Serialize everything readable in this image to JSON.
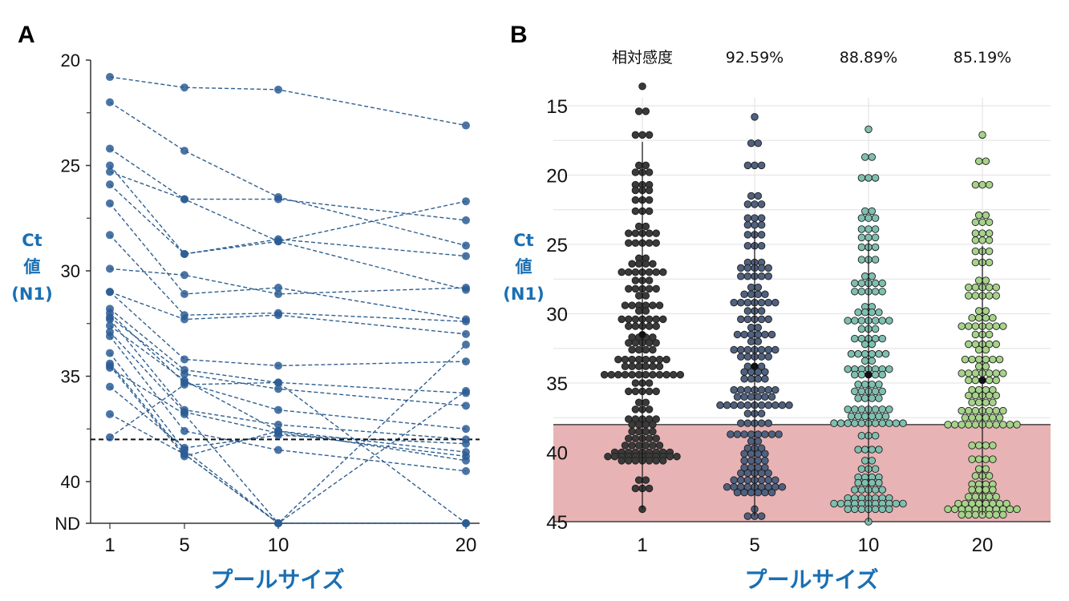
{
  "chart_data": [
    {
      "panel": "A",
      "type": "line",
      "panel_label": "A",
      "xlabel": "プールサイズ",
      "ylabel_lines": [
        "Ct",
        "値",
        "(N1)"
      ],
      "x_categories": [
        "1",
        "5",
        "10",
        "20"
      ],
      "y_ticks": [
        "20",
        "25",
        "30",
        "35",
        "40",
        "ND"
      ],
      "y_tick_values": [
        20,
        25,
        30,
        35,
        40,
        42
      ],
      "ylim": [
        20,
        42
      ],
      "y_inverted": true,
      "nd_value": 42,
      "threshold": 38,
      "line_color": "#2f5f8f",
      "marker_color": "#2b5d95",
      "series": [
        {
          "values": [
            20.8,
            21.3,
            21.4,
            23.1
          ]
        },
        {
          "values": [
            22.0,
            24.3,
            26.5,
            28.8
          ]
        },
        {
          "values": [
            24.2,
            26.6,
            26.6,
            27.6
          ]
        },
        {
          "values": [
            25.0,
            29.2,
            28.5,
            29.3
          ]
        },
        {
          "values": [
            25.3,
            26.6,
            28.6,
            30.9
          ]
        },
        {
          "values": [
            25.9,
            29.2,
            28.6,
            26.7
          ]
        },
        {
          "values": [
            26.8,
            31.1,
            30.8,
            32.3
          ]
        },
        {
          "values": [
            28.3,
            32.1,
            32.0,
            32.4
          ]
        },
        {
          "values": [
            29.9,
            30.2,
            31.1,
            30.8
          ]
        },
        {
          "values": [
            31.0,
            32.3,
            32.1,
            33.0
          ]
        },
        {
          "values": [
            31.0,
            34.2,
            34.5,
            34.3
          ]
        },
        {
          "values": [
            31.8,
            34.7,
            35.3,
            35.8
          ]
        },
        {
          "values": [
            32.0,
            35.3,
            36.6,
            37.5
          ]
        },
        {
          "values": [
            32.2,
            34.9,
            35.6,
            36.4
          ]
        },
        {
          "values": [
            32.3,
            36.6,
            37.3,
            38.0
          ]
        },
        {
          "values": [
            32.6,
            35.2,
            37.6,
            38.6
          ]
        },
        {
          "values": [
            32.9,
            36.7,
            37.7,
            38.8
          ]
        },
        {
          "values": [
            33.1,
            37.6,
            38.5,
            39.5
          ]
        },
        {
          "values": [
            33.9,
            38.5,
            42,
            33.5
          ]
        },
        {
          "values": [
            34.4,
            38.7,
            42,
            35.7
          ]
        },
        {
          "values": [
            34.5,
            38.8,
            37.6,
            39.0
          ]
        },
        {
          "values": [
            34.6,
            36.8,
            42,
            42
          ]
        },
        {
          "values": [
            35.5,
            38.4,
            37.8,
            38.2
          ]
        },
        {
          "values": [
            36.8,
            38.7,
            42,
            42
          ]
        },
        {
          "values": [
            37.9,
            35.4,
            35.3,
            42
          ]
        }
      ]
    },
    {
      "panel": "B",
      "type": "scatter",
      "subtype": "beeswarm",
      "panel_label": "B",
      "xlabel": "プールサイズ",
      "ylabel_lines": [
        "Ct",
        "値",
        "(N1)"
      ],
      "x_categories": [
        "1",
        "5",
        "10",
        "20"
      ],
      "y_ticks": [
        "15",
        "20",
        "25",
        "30",
        "35",
        "40",
        "45"
      ],
      "y_tick_values": [
        15,
        20,
        25,
        30,
        35,
        40,
        45
      ],
      "ylim": [
        13,
        45
      ],
      "y_inverted": true,
      "grid": true,
      "threshold": 38,
      "shaded_region": [
        38,
        45
      ],
      "shaded_color": "#e8b3b5",
      "header_label": "相対感度",
      "relative_sensitivity": [
        "",
        "92.59%",
        "88.89%",
        "85.19%"
      ],
      "medians": [
        31.5,
        33.8,
        34.4,
        34.8
      ],
      "group_colors": [
        "#3a3a3a",
        "#50617f",
        "#7fbfb0",
        "#a6d38a"
      ],
      "groups": [
        {
          "rows": [
            [
              13.6,
              1
            ],
            [
              15.4,
              2
            ],
            [
              17.1,
              3
            ],
            [
              19.3,
              2
            ],
            [
              19.8,
              3
            ],
            [
              20.7,
              3
            ],
            [
              21.1,
              3
            ],
            [
              21.8,
              3
            ],
            [
              22.6,
              3
            ],
            [
              23.7,
              2
            ],
            [
              24.2,
              5
            ],
            [
              24.9,
              5
            ],
            [
              26.0,
              2
            ],
            [
              26.4,
              4
            ],
            [
              27.0,
              7
            ],
            [
              27.6,
              3
            ],
            [
              28.2,
              5
            ],
            [
              28.7,
              2
            ],
            [
              29.4,
              6
            ],
            [
              29.8,
              2
            ],
            [
              30.4,
              7
            ],
            [
              30.9,
              5
            ],
            [
              31.7,
              4
            ],
            [
              32.1,
              5
            ],
            [
              32.6,
              4
            ],
            [
              33.3,
              8
            ],
            [
              33.8,
              6
            ],
            [
              34.4,
              12
            ],
            [
              35.0,
              3
            ],
            [
              35.6,
              5
            ],
            [
              36.4,
              2
            ],
            [
              36.9,
              3
            ],
            [
              37.6,
              5
            ],
            [
              38.0,
              4
            ],
            [
              38.5,
              4
            ],
            [
              39.0,
              5
            ],
            [
              39.5,
              6
            ],
            [
              40.0,
              9
            ],
            [
              40.3,
              11
            ],
            [
              40.6,
              7
            ],
            [
              42.0,
              2
            ],
            [
              42.6,
              3
            ],
            [
              44.1,
              1
            ]
          ]
        },
        {
          "rows": [
            [
              15.8,
              1
            ],
            [
              17.7,
              2
            ],
            [
              19.3,
              3
            ],
            [
              21.5,
              2
            ],
            [
              22.1,
              3
            ],
            [
              23.1,
              3
            ],
            [
              23.6,
              3
            ],
            [
              24.3,
              3
            ],
            [
              25.1,
              3
            ],
            [
              26.3,
              3
            ],
            [
              26.7,
              5
            ],
            [
              27.3,
              5
            ],
            [
              28.1,
              2
            ],
            [
              28.6,
              4
            ],
            [
              29.2,
              7
            ],
            [
              29.8,
              3
            ],
            [
              30.4,
              5
            ],
            [
              31.0,
              2
            ],
            [
              31.5,
              6
            ],
            [
              32.0,
              2
            ],
            [
              32.6,
              7
            ],
            [
              33.1,
              5
            ],
            [
              33.8,
              3
            ],
            [
              34.2,
              4
            ],
            [
              34.7,
              4
            ],
            [
              35.5,
              7
            ],
            [
              36.0,
              6
            ],
            [
              36.6,
              11
            ],
            [
              37.2,
              3
            ],
            [
              37.9,
              5
            ],
            [
              38.7,
              8
            ],
            [
              39.2,
              2
            ],
            [
              39.7,
              3
            ],
            [
              40.1,
              4
            ],
            [
              40.6,
              4
            ],
            [
              41.1,
              4
            ],
            [
              41.5,
              5
            ],
            [
              42.0,
              7
            ],
            [
              42.5,
              9
            ],
            [
              42.9,
              6
            ],
            [
              44.1,
              1
            ],
            [
              44.6,
              3
            ]
          ]
        },
        {
          "rows": [
            [
              16.7,
              1
            ],
            [
              18.7,
              2
            ],
            [
              20.2,
              3
            ],
            [
              22.6,
              2
            ],
            [
              23.1,
              3
            ],
            [
              23.9,
              3
            ],
            [
              24.5,
              3
            ],
            [
              25.2,
              3
            ],
            [
              26.1,
              3
            ],
            [
              27.3,
              2
            ],
            [
              27.8,
              5
            ],
            [
              28.4,
              5
            ],
            [
              29.5,
              2
            ],
            [
              29.9,
              4
            ],
            [
              30.5,
              7
            ],
            [
              31.1,
              3
            ],
            [
              31.8,
              5
            ],
            [
              32.2,
              2
            ],
            [
              32.9,
              6
            ],
            [
              33.4,
              2
            ],
            [
              34.0,
              7
            ],
            [
              34.4,
              5
            ],
            [
              35.1,
              4
            ],
            [
              35.6,
              5
            ],
            [
              36.1,
              4
            ],
            [
              36.9,
              7
            ],
            [
              37.4,
              6
            ],
            [
              37.9,
              11
            ],
            [
              38.8,
              3
            ],
            [
              39.8,
              4
            ],
            [
              40.6,
              2
            ],
            [
              41.2,
              3
            ],
            [
              41.8,
              4
            ],
            [
              42.2,
              4
            ],
            [
              42.7,
              5
            ],
            [
              43.3,
              7
            ],
            [
              43.7,
              11
            ],
            [
              44.1,
              7
            ],
            [
              45.0,
              1
            ]
          ]
        },
        {
          "rows": [
            [
              17.1,
              1
            ],
            [
              19.0,
              2
            ],
            [
              20.7,
              3
            ],
            [
              22.9,
              2
            ],
            [
              23.4,
              3
            ],
            [
              24.2,
              3
            ],
            [
              24.7,
              3
            ],
            [
              25.5,
              3
            ],
            [
              26.3,
              3
            ],
            [
              27.6,
              2
            ],
            [
              28.1,
              5
            ],
            [
              28.7,
              5
            ],
            [
              29.8,
              2
            ],
            [
              30.3,
              4
            ],
            [
              30.9,
              7
            ],
            [
              31.5,
              3
            ],
            [
              32.2,
              5
            ],
            [
              32.6,
              2
            ],
            [
              33.3,
              6
            ],
            [
              33.8,
              2
            ],
            [
              34.3,
              7
            ],
            [
              34.8,
              5
            ],
            [
              35.5,
              4
            ],
            [
              35.9,
              5
            ],
            [
              36.4,
              4
            ],
            [
              37.0,
              7
            ],
            [
              37.5,
              6
            ],
            [
              38.0,
              11
            ],
            [
              39.5,
              4
            ],
            [
              40.5,
              4
            ],
            [
              41.2,
              2
            ],
            [
              41.7,
              3
            ],
            [
              42.3,
              4
            ],
            [
              42.7,
              4
            ],
            [
              43.2,
              5
            ],
            [
              43.7,
              8
            ],
            [
              44.1,
              11
            ],
            [
              44.5,
              7
            ]
          ]
        }
      ]
    }
  ]
}
